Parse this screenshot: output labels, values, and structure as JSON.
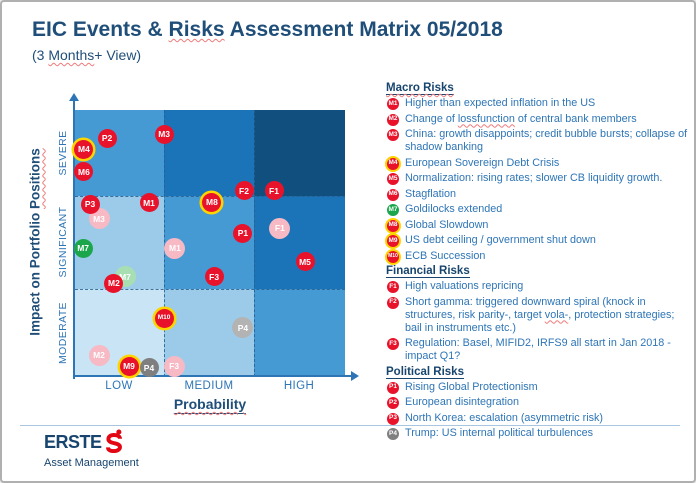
{
  "title": {
    "pre": "EIC Events & ",
    "squiggle": "Risks",
    "post": " Assessment Matrix 05/2018"
  },
  "subtitle": {
    "pre": "(3 ",
    "squiggle": "Months",
    "post": "+ View)"
  },
  "palette": {
    "accent_dark": "#1F4E79",
    "accent_mid": "#2E75B6",
    "erste_red": "#E30613",
    "ring": "#FFD500",
    "marker": {
      "red": "#E8132B",
      "green": "#1CA64C",
      "gray": "#7F7F7F"
    },
    "ghost": {
      "red": "#F7B9C4",
      "green": "#A8DFB2",
      "gray": "#B3B3B3"
    },
    "cell_rows": [
      [
        "#469AD4",
        "#1B74B8",
        "#11507E"
      ],
      [
        "#9CCBEA",
        "#469AD4",
        "#1B74B8"
      ],
      [
        "#C8E4F5",
        "#9CCBEA",
        "#469AD4"
      ]
    ]
  },
  "chart_data": {
    "type": "scatter",
    "title": "EIC Events & Risks Assessment Matrix 05/2018",
    "subtitle": "(3 Months+ View)",
    "xlabel": "Probability",
    "ylabel": {
      "pre": "Impact on Portfolio ",
      "squiggle": "Positions"
    },
    "x_categories": [
      "LOW",
      "MEDIUM",
      "HIGH"
    ],
    "y_categories": [
      "MODERATE",
      "SIGNIFICANT",
      "SEVERE"
    ],
    "grid": "3x3 dashed",
    "legend_position": "right",
    "points": [
      {
        "id": "M3",
        "state": "previous",
        "color": "red",
        "ring": false,
        "x_pct": 8.9,
        "y_pct": 59.2
      },
      {
        "id": "F1",
        "state": "previous",
        "color": "red",
        "ring": false,
        "x_pct": 75.9,
        "y_pct": 55.8
      },
      {
        "id": "M1",
        "state": "previous",
        "color": "red",
        "ring": false,
        "x_pct": 37.0,
        "y_pct": 48.3
      },
      {
        "id": "M7",
        "state": "previous",
        "color": "green",
        "ring": false,
        "x_pct": 18.5,
        "y_pct": 37.5
      },
      {
        "id": "P4",
        "state": "previous",
        "color": "gray",
        "ring": false,
        "x_pct": 62.2,
        "y_pct": 18.4
      },
      {
        "id": "M2",
        "state": "previous",
        "color": "red",
        "ring": false,
        "x_pct": 8.9,
        "y_pct": 8.2
      },
      {
        "id": "F3",
        "state": "previous",
        "color": "red",
        "ring": false,
        "x_pct": 36.7,
        "y_pct": 4.1
      },
      {
        "id": "P2",
        "state": "current",
        "color": "red",
        "ring": false,
        "x_pct": 11.9,
        "y_pct": 89.5
      },
      {
        "id": "M4",
        "state": "current",
        "color": "red",
        "ring": true,
        "x_pct": 3.3,
        "y_pct": 85.4
      },
      {
        "id": "M6",
        "state": "current",
        "color": "red",
        "ring": false,
        "x_pct": 3.3,
        "y_pct": 76.8
      },
      {
        "id": "M3",
        "state": "current",
        "color": "red",
        "ring": false,
        "x_pct": 33.0,
        "y_pct": 91.0
      },
      {
        "id": "F2",
        "state": "current",
        "color": "red",
        "ring": false,
        "x_pct": 62.6,
        "y_pct": 69.7
      },
      {
        "id": "F1",
        "state": "current",
        "color": "red",
        "ring": false,
        "x_pct": 73.7,
        "y_pct": 69.7
      },
      {
        "id": "P3",
        "state": "current",
        "color": "red",
        "ring": false,
        "x_pct": 5.6,
        "y_pct": 64.8
      },
      {
        "id": "M1",
        "state": "current",
        "color": "red",
        "ring": false,
        "x_pct": 27.4,
        "y_pct": 65.2
      },
      {
        "id": "M8",
        "state": "current",
        "color": "red",
        "ring": true,
        "x_pct": 50.7,
        "y_pct": 65.5
      },
      {
        "id": "P1",
        "state": "current",
        "color": "red",
        "ring": false,
        "x_pct": 62.2,
        "y_pct": 53.9
      },
      {
        "id": "M7",
        "state": "current",
        "color": "green",
        "ring": false,
        "x_pct": 3.0,
        "y_pct": 48.3
      },
      {
        "id": "M5",
        "state": "current",
        "color": "red",
        "ring": false,
        "x_pct": 85.2,
        "y_pct": 43.1
      },
      {
        "id": "M2",
        "state": "current",
        "color": "red",
        "ring": false,
        "x_pct": 14.4,
        "y_pct": 35.2
      },
      {
        "id": "F3",
        "state": "current",
        "color": "red",
        "ring": false,
        "x_pct": 51.5,
        "y_pct": 37.5
      },
      {
        "id": "M10",
        "state": "current",
        "color": "red",
        "ring": true,
        "x_pct": 33.0,
        "y_pct": 22.1
      },
      {
        "id": "M9",
        "state": "current",
        "color": "red",
        "ring": true,
        "x_pct": 20.0,
        "y_pct": 4.1
      },
      {
        "id": "P4",
        "state": "current",
        "color": "gray",
        "ring": false,
        "x_pct": 27.4,
        "y_pct": 3.4
      }
    ]
  },
  "legend": {
    "sections": [
      {
        "title": "Macro Risks",
        "title_squiggle": true,
        "items": [
          {
            "id": "M1",
            "color": "red",
            "ring": false,
            "text": "Higher than expected inflation in the US"
          },
          {
            "id": "M2",
            "color": "red",
            "ring": false,
            "segments": [
              {
                "t": "Change of "
              },
              {
                "t": "lossfunction",
                "squiggle": true
              },
              {
                "t": " of central bank members"
              }
            ]
          },
          {
            "id": "M3",
            "color": "red",
            "ring": false,
            "text": "China: growth disappoints; credit bubble bursts; collapse of shadow banking"
          },
          {
            "id": "M4",
            "color": "red",
            "ring": true,
            "text": "European Sovereign Debt Crisis"
          },
          {
            "id": "M5",
            "color": "red",
            "ring": false,
            "text": "Normalization: rising rates; slower CB liquidity growth."
          },
          {
            "id": "M6",
            "color": "red",
            "ring": false,
            "text": "Stagflation"
          },
          {
            "id": "M7",
            "color": "green",
            "ring": false,
            "text": "Goldilocks extended"
          },
          {
            "id": "M8",
            "color": "red",
            "ring": true,
            "text": "Global Slowdown"
          },
          {
            "id": "M9",
            "color": "red",
            "ring": true,
            "text": "US debt ceiling / government shut down"
          },
          {
            "id": "M10",
            "color": "red",
            "ring": true,
            "text": "ECB Succession"
          }
        ]
      },
      {
        "title": "Financial Risks",
        "title_squiggle": false,
        "items": [
          {
            "id": "F1",
            "color": "red",
            "ring": false,
            "text": "High valuations repricing"
          },
          {
            "id": "F2",
            "color": "red",
            "ring": false,
            "segments": [
              {
                "t": "Short gamma: triggered downward spiral (knock in structures, risk parity-, target "
              },
              {
                "t": "vola-",
                "squiggle": true
              },
              {
                "t": ", protection strategies; bail in instruments etc.)"
              }
            ]
          },
          {
            "id": "F3",
            "color": "red",
            "ring": false,
            "text": "Regulation: Basel, MIFID2, IRFS9 all start in Jan 2018 - impact Q1?"
          }
        ]
      },
      {
        "title": "Political Risks",
        "title_squiggle": false,
        "items": [
          {
            "id": "P1",
            "color": "red",
            "ring": false,
            "text": "Rising Global Protectionism"
          },
          {
            "id": "P2",
            "color": "red",
            "ring": false,
            "text": "European disintegration"
          },
          {
            "id": "P3",
            "color": "red",
            "ring": false,
            "text": "North Korea: escalation (asymmetric risk)"
          },
          {
            "id": "P4",
            "color": "gray",
            "ring": false,
            "text": "Trump: US internal political turbulences"
          }
        ]
      }
    ]
  },
  "footer": {
    "brand": "ERSTE",
    "brand_sub": "Asset Management"
  }
}
